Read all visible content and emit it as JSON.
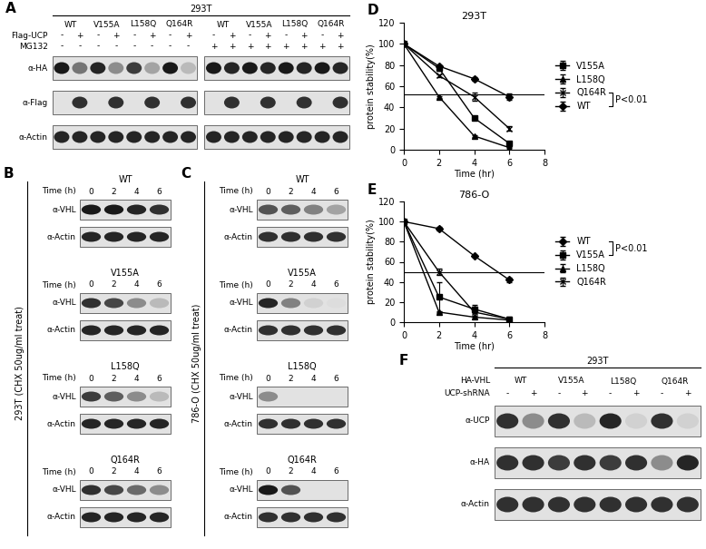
{
  "panels": {
    "A": {
      "label": "A",
      "header": "293T",
      "groups": [
        "WT",
        "V155A",
        "L158Q",
        "Q164R",
        "WT",
        "V155A",
        "L158Q",
        "Q164R"
      ],
      "sign_rows": [
        {
          "name": "Flag-UCP",
          "signs": [
            "-",
            "+",
            "-",
            "+",
            "-",
            "+",
            "-",
            "+",
            "-",
            "+",
            "-",
            "+",
            "-",
            "+",
            "-",
            "+"
          ]
        },
        {
          "name": "MG132",
          "signs": [
            "-",
            "-",
            "-",
            "-",
            "-",
            "-",
            "-",
            "-",
            "+",
            "+",
            "+",
            "+",
            "+",
            "+",
            "+",
            "+"
          ]
        }
      ],
      "blots": [
        {
          "name": "α-HA",
          "intensity": [
            1,
            0.6,
            0.95,
            0.5,
            0.85,
            0.4,
            1,
            0.3,
            1,
            0.95,
            1,
            0.95,
            1,
            0.95,
            1,
            0.95
          ]
        },
        {
          "name": "α-Flag",
          "intensity": [
            0,
            0.9,
            0,
            0.9,
            0,
            0.9,
            0,
            0.9,
            0,
            0.9,
            0,
            0.9,
            0,
            0.9,
            0,
            0.9
          ]
        },
        {
          "name": "α-Actin",
          "intensity": [
            0.95,
            0.95,
            0.95,
            0.95,
            0.95,
            0.95,
            0.95,
            0.95,
            0.95,
            0.95,
            0.95,
            0.95,
            0.95,
            0.95,
            0.95,
            0.95
          ]
        }
      ]
    },
    "B": {
      "label": "B",
      "side_label": "293T (CHX 50ug/ml treat)",
      "time_label": "Time (h)",
      "times": [
        0,
        2,
        4,
        6
      ],
      "blots": [
        {
          "title": "WT",
          "rows": [
            {
              "name": "α-VHL",
              "intensity": [
                1,
                1,
                0.95,
                0.9
              ]
            },
            {
              "name": "α-Actin",
              "intensity": [
                0.95,
                0.95,
                0.95,
                0.95
              ]
            }
          ]
        },
        {
          "title": "V155A",
          "rows": [
            {
              "name": "α-VHL",
              "intensity": [
                0.9,
                0.8,
                0.5,
                0.3
              ]
            },
            {
              "name": "α-Actin",
              "intensity": [
                0.95,
                0.95,
                0.95,
                0.95
              ]
            }
          ]
        },
        {
          "title": "L158Q",
          "rows": [
            {
              "name": "α-VHL",
              "intensity": [
                0.85,
                0.7,
                0.5,
                0.3
              ]
            },
            {
              "name": "α-Actin",
              "intensity": [
                0.95,
                0.95,
                0.95,
                0.95
              ]
            }
          ]
        },
        {
          "title": "Q164R",
          "rows": [
            {
              "name": "α-VHL",
              "intensity": [
                0.9,
                0.8,
                0.65,
                0.5
              ]
            },
            {
              "name": "α-Actin",
              "intensity": [
                0.95,
                0.95,
                0.95,
                0.95
              ]
            }
          ]
        }
      ]
    },
    "C": {
      "label": "C",
      "side_label": "786-O (CHX 50ug/ml treat)",
      "time_label": "Time (h)",
      "times": [
        0,
        2,
        4,
        6
      ],
      "blots": [
        {
          "title": "WT",
          "rows": [
            {
              "name": "α-VHL",
              "intensity": [
                0.75,
                0.7,
                0.55,
                0.4
              ]
            },
            {
              "name": "α-Actin",
              "intensity": [
                0.9,
                0.9,
                0.9,
                0.9
              ]
            }
          ]
        },
        {
          "title": "V155A",
          "rows": [
            {
              "name": "α-VHL",
              "intensity": [
                0.95,
                0.55,
                0.2,
                0.15
              ]
            },
            {
              "name": "α-Actin",
              "intensity": [
                0.9,
                0.9,
                0.9,
                0.9
              ]
            }
          ]
        },
        {
          "title": "L158Q",
          "rows": [
            {
              "name": "α-VHL",
              "intensity": [
                0.5,
                0,
                0,
                0
              ]
            },
            {
              "name": "α-Actin",
              "intensity": [
                0.9,
                0.9,
                0.9,
                0.9
              ]
            }
          ]
        },
        {
          "title": "Q164R",
          "rows": [
            {
              "name": "α-VHL",
              "intensity": [
                1,
                0.75,
                0,
                0
              ]
            },
            {
              "name": "α-Actin",
              "intensity": [
                0.9,
                0.9,
                0.9,
                0.9
              ]
            }
          ]
        }
      ]
    },
    "F": {
      "label": "F",
      "header": "293T",
      "group_name": "HA-VHL",
      "groups": [
        "WT",
        "V155A",
        "L158Q",
        "Q164R"
      ],
      "sign_rows": [
        {
          "name": "UCP-shRNA",
          "signs": [
            "-",
            "+",
            "-",
            "+",
            "-",
            "+",
            "-",
            "+"
          ]
        }
      ],
      "blots": [
        {
          "name": "α-UCP",
          "intensity": [
            0.9,
            0.5,
            0.9,
            0.3,
            0.95,
            0.2,
            0.9,
            0.2
          ]
        },
        {
          "name": "α-HA",
          "intensity": [
            0.9,
            0.9,
            0.85,
            0.9,
            0.85,
            0.9,
            0.5,
            0.95
          ]
        },
        {
          "name": "α-Actin",
          "intensity": [
            0.9,
            0.9,
            0.9,
            0.9,
            0.9,
            0.9,
            0.9,
            0.9
          ]
        }
      ]
    }
  },
  "chart_data": [
    {
      "label": "D",
      "type": "line",
      "title": "293T",
      "x_label": "Time (hr)",
      "y_label": "protein stability(%)",
      "x": [
        0,
        2,
        4,
        6
      ],
      "xlim": [
        0,
        8
      ],
      "xticks": [
        0,
        2,
        4,
        6,
        8
      ],
      "ylim": [
        0,
        120
      ],
      "yticks": [
        0,
        20,
        40,
        60,
        80,
        100,
        120
      ],
      "hline": 52,
      "legend": "center left",
      "annotation": {
        "text": "P<0.01",
        "between": [
          "Q164R",
          "WT"
        ]
      },
      "series": [
        {
          "name": "V155A",
          "color": "#000000",
          "marker": "square",
          "line_style": "solid",
          "values": [
            100,
            77,
            30,
            6
          ],
          "errors": [
            0,
            2,
            1,
            1
          ]
        },
        {
          "name": "L158Q",
          "color": "#000000",
          "marker": "triangle",
          "line_style": "solid",
          "values": [
            100,
            50,
            13,
            2
          ],
          "errors": [
            0,
            1,
            1,
            0.5
          ]
        },
        {
          "name": "Q164R",
          "color": "#000000",
          "marker": "x",
          "line_style": "solid",
          "values": [
            100,
            70,
            50,
            20
          ],
          "errors": [
            0,
            1,
            4,
            2
          ]
        },
        {
          "name": "WT",
          "color": "#000000",
          "marker": "diamond",
          "line_style": "solid",
          "values": [
            100,
            79,
            67,
            50
          ],
          "errors": [
            0,
            1,
            2,
            3
          ]
        }
      ]
    },
    {
      "label": "E",
      "type": "line",
      "title": "786-O",
      "x_label": "Time (hr)",
      "y_label": "protein stability(%)",
      "x": [
        0,
        2,
        4,
        6
      ],
      "xlim": [
        0,
        8
      ],
      "xticks": [
        0,
        2,
        4,
        6,
        8
      ],
      "ylim": [
        0,
        120
      ],
      "yticks": [
        0,
        20,
        40,
        60,
        80,
        100,
        120
      ],
      "hline": 50,
      "legend": "center left",
      "annotation": {
        "text": "P<0.01",
        "between": [
          "WT",
          "V155A"
        ]
      },
      "series": [
        {
          "name": "WT",
          "color": "#000000",
          "marker": "diamond",
          "line_style": "solid",
          "values": [
            100,
            93,
            66,
            42
          ],
          "errors": [
            0,
            2,
            1,
            2
          ]
        },
        {
          "name": "V155A",
          "color": "#000000",
          "marker": "square",
          "line_style": "solid",
          "values": [
            100,
            25,
            13,
            3
          ],
          "errors": [
            0,
            15,
            4,
            2
          ]
        },
        {
          "name": "L158Q",
          "color": "#000000",
          "marker": "triangle",
          "line_style": "solid",
          "values": [
            100,
            10,
            5,
            2
          ],
          "errors": [
            0,
            1,
            1,
            0.5
          ]
        },
        {
          "name": "Q164R",
          "color": "#000000",
          "marker": "x",
          "line_style": "solid",
          "values": [
            100,
            50,
            10,
            3
          ],
          "errors": [
            0,
            3,
            5,
            1
          ]
        }
      ]
    }
  ]
}
